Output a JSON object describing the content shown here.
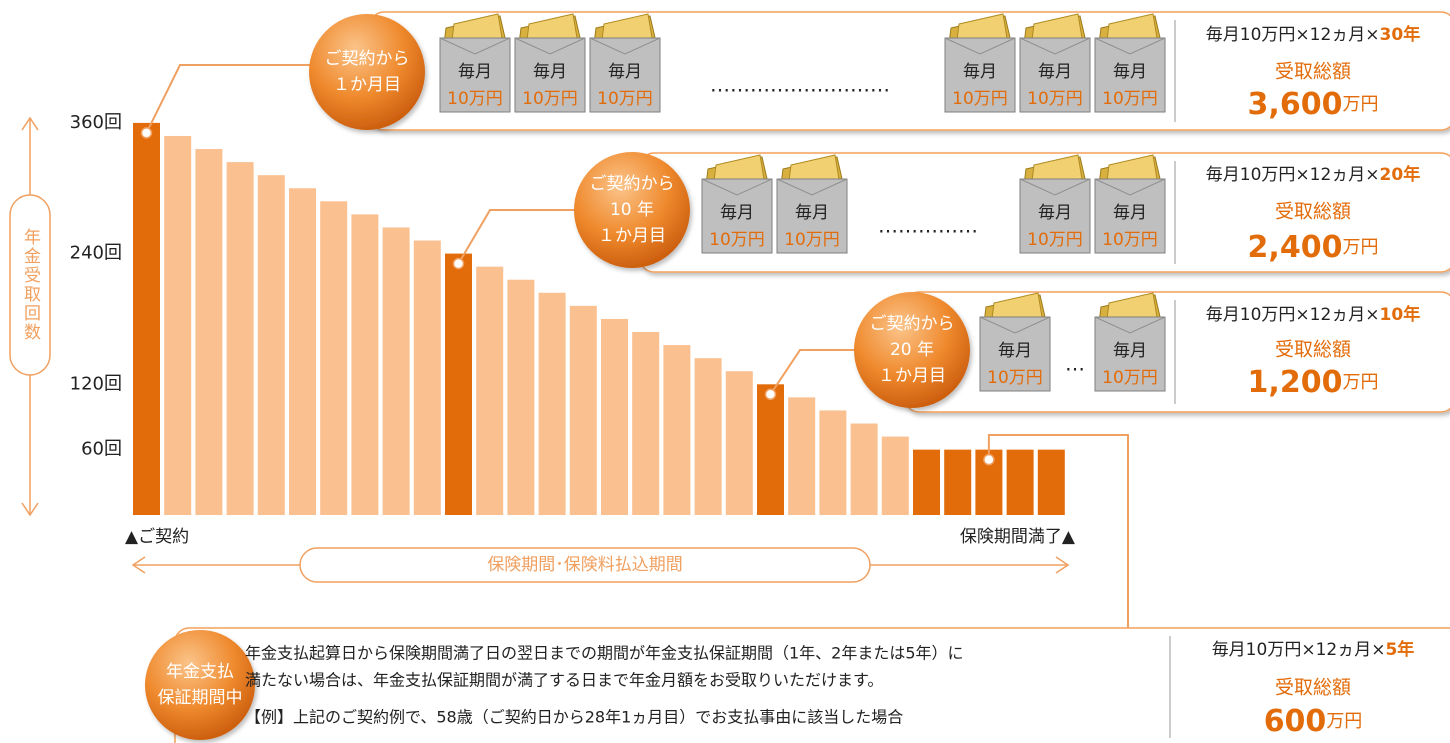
{
  "chart_data": {
    "type": "bar",
    "y_label": "年金受取回数",
    "categories": [
      null,
      null,
      null,
      null,
      null,
      null,
      null,
      null,
      null,
      null,
      null,
      null,
      null,
      null,
      null,
      null,
      null,
      null,
      null,
      null,
      null,
      null,
      null,
      null,
      null,
      null,
      null,
      null,
      null,
      null
    ],
    "values": [
      360,
      348,
      336,
      324,
      312,
      300,
      288,
      276,
      264,
      252,
      240,
      228,
      216,
      204,
      192,
      180,
      168,
      156,
      144,
      132,
      120,
      108,
      96,
      84,
      72,
      60,
      60,
      60,
      60,
      60
    ],
    "colors": [
      "#e36c0a",
      "#fac090",
      "#fac090",
      "#fac090",
      "#fac090",
      "#fac090",
      "#fac090",
      "#fac090",
      "#fac090",
      "#fac090",
      "#e36c0a",
      "#fac090",
      "#fac090",
      "#fac090",
      "#fac090",
      "#fac090",
      "#fac090",
      "#fac090",
      "#fac090",
      "#fac090",
      "#e36c0a",
      "#fac090",
      "#fac090",
      "#fac090",
      "#fac090",
      "#e36c0a",
      "#e36c0a",
      "#e36c0a",
      "#e36c0a",
      "#e36c0a"
    ],
    "ylim": [
      0,
      370
    ],
    "yticks": [
      {
        "value": 360,
        "label": "360回"
      },
      {
        "value": 240,
        "label": "240回"
      },
      {
        "value": 120,
        "label": "120回"
      },
      {
        "value": 60,
        "label": "60回"
      }
    ],
    "start_label": "▲ご契約",
    "end_label": "保険期間満了▲",
    "period_label": "保険期間･保険料払込期間"
  },
  "callouts": [
    {
      "badge": [
        "ご契約から",
        "１か月目"
      ],
      "envelope": [
        "毎月",
        "10万円"
      ],
      "ellipsis": "………………………",
      "formula": "毎月10万円×12ヵ月×",
      "years": "30年",
      "total_label": "受取総額",
      "total": "3,600",
      "unit": "万円"
    },
    {
      "badge": [
        "ご契約から",
        "10 年",
        "１か月目"
      ],
      "envelope": [
        "毎月",
        "10万円"
      ],
      "ellipsis": "……………",
      "formula": "毎月10万円×12ヵ月×",
      "years": "20年",
      "total_label": "受取総額",
      "total": "2,400",
      "unit": "万円"
    },
    {
      "badge": [
        "ご契約から",
        "20 年",
        "１か月目"
      ],
      "envelope": [
        "毎月",
        "10万円"
      ],
      "ellipsis": "…",
      "formula": "毎月10万円×12ヵ月×",
      "years": "10年",
      "total_label": "受取総額",
      "total": "1,200",
      "unit": "万円"
    }
  ],
  "guarantee": {
    "badge": [
      "年金支払",
      "保証期間中"
    ],
    "lines": [
      "年金支払起算日から保険期間満了日の翌日までの期間が年金支払保証期間（1年、2年または5年）に",
      "満たない場合は、年金支払保証期間が満了する日まで年金月額をお受取りいただけます。",
      "【例】上記のご契約例で、58歳（ご契約日から28年1ヵ月目）でお支払事由に該当した場合"
    ],
    "formula": "毎月10万円×12ヵ月×",
    "years": "5年",
    "total_label": "受取総額",
    "total": "600",
    "unit": "万円"
  }
}
